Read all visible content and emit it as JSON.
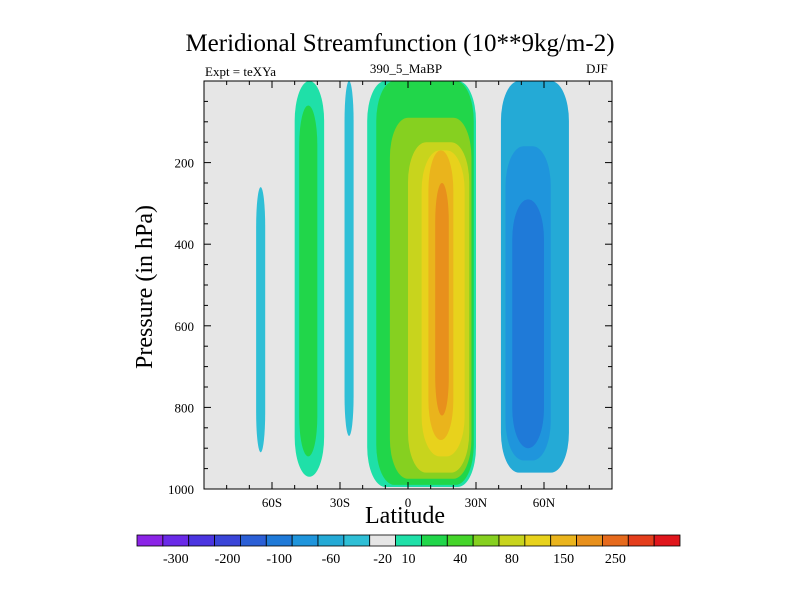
{
  "chart_data": {
    "type": "heatmap",
    "title": "Meridional Streamfunction (10**9kg/m-2)",
    "subtitle_left": "Expt = teXYa",
    "subtitle_center": "390_5_MaBP",
    "subtitle_right": "DJF",
    "xlabel": "Latitude",
    "ylabel": "Pressure (in hPa)",
    "x_range": [
      -90,
      90
    ],
    "y_range": [
      0,
      1000
    ],
    "y_reversed": true,
    "x_ticks": [
      -60,
      -30,
      0,
      30,
      60
    ],
    "x_tick_labels": [
      "60S",
      "30S",
      "0",
      "30N",
      "60N"
    ],
    "y_ticks": [
      200,
      400,
      600,
      800,
      1000
    ],
    "y_tick_labels": [
      "200",
      "400",
      "600",
      "800",
      "1000"
    ],
    "background_color": "#e6e6e6",
    "colorbar": {
      "labels": [
        "-300",
        "-200",
        "-100",
        "-60",
        "-20",
        "10",
        "40",
        "80",
        "150",
        "250"
      ],
      "colors": [
        "#8b24e6",
        "#6a2ae8",
        "#4b35e0",
        "#3a45d8",
        "#2b5fd6",
        "#1f7ad8",
        "#1f95dc",
        "#24aad6",
        "#2fbfd6",
        "#e6e6e6",
        "#1fe0a8",
        "#21d64a",
        "#45d52a",
        "#86d020",
        "#c8d41d",
        "#e8d21c",
        "#eab41c",
        "#e8901c",
        "#e66a1c",
        "#e43e1c",
        "#e0161c"
      ]
    },
    "regions": [
      {
        "level": "-20",
        "color": "#2fbfd6",
        "lat": [
          -67,
          -63
        ],
        "p": [
          260,
          910
        ]
      },
      {
        "level": "10",
        "color": "#1fe0a8",
        "lat": [
          -50,
          -37
        ],
        "p": [
          0,
          970
        ]
      },
      {
        "level": "40",
        "color": "#21d64a",
        "lat": [
          -48,
          -40
        ],
        "p": [
          60,
          920
        ]
      },
      {
        "level": "-20",
        "color": "#2fbfd6",
        "lat": [
          -28,
          -24
        ],
        "p": [
          0,
          870
        ]
      },
      {
        "level": "10",
        "color": "#1fe0a8",
        "lat": [
          -18,
          30
        ],
        "p": [
          0,
          995
        ]
      },
      {
        "level": "40",
        "color": "#21d64a",
        "lat": [
          -14,
          29
        ],
        "p": [
          0,
          990
        ]
      },
      {
        "level": "80",
        "color": "#86d020",
        "lat": [
          -8,
          28
        ],
        "p": [
          90,
          975
        ]
      },
      {
        "level": "150",
        "color": "#c8d41d",
        "lat": [
          0,
          27
        ],
        "p": [
          150,
          960
        ]
      },
      {
        "level": "150",
        "color": "#e8d21c",
        "lat": [
          6,
          25
        ],
        "p": [
          170,
          920
        ]
      },
      {
        "level": "250",
        "color": "#eab41c",
        "lat": [
          9,
          20
        ],
        "p": [
          170,
          880
        ]
      },
      {
        "level": "250",
        "color": "#e8901c",
        "lat": [
          12,
          18
        ],
        "p": [
          250,
          820
        ]
      },
      {
        "level": "-20",
        "color": "#24aad6",
        "lat": [
          41,
          71
        ],
        "p": [
          0,
          960
        ]
      },
      {
        "level": "-60",
        "color": "#1f95dc",
        "lat": [
          43,
          63
        ],
        "p": [
          160,
          930
        ]
      },
      {
        "level": "-100",
        "color": "#1f7ad8",
        "lat": [
          46,
          60
        ],
        "p": [
          290,
          900
        ]
      }
    ]
  }
}
